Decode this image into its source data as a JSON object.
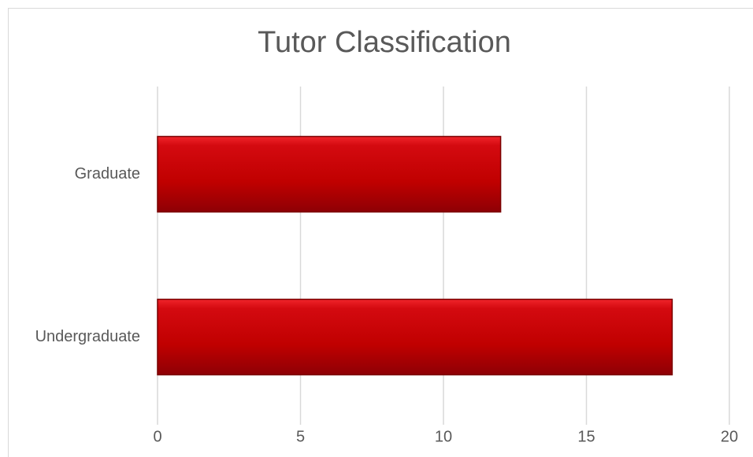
{
  "chart_data": {
    "type": "bar",
    "orientation": "horizontal",
    "title": "Tutor Classification",
    "categories": [
      "Graduate",
      "Undergraduate"
    ],
    "values": [
      12,
      18
    ],
    "color": "#c00000",
    "xlim": [
      0,
      20
    ],
    "xticks": [
      0,
      5,
      10,
      15,
      20
    ],
    "grid": true
  }
}
